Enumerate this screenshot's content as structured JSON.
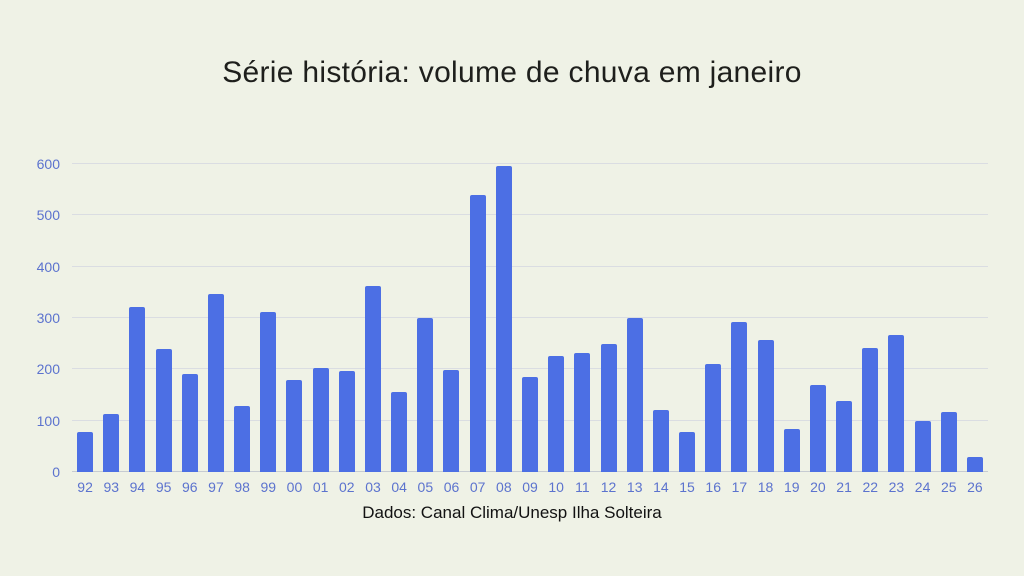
{
  "caption": "Dados: Canal Clima/Unesp Ilha Solteira",
  "colors": {
    "background": "#eff2e6",
    "bar": "#4c6fe4",
    "axis_label": "#5c73ce",
    "gridline": "#dadde2",
    "title_text": "#1e1f1c"
  },
  "chart_data": {
    "type": "bar",
    "title": "Série história: volume de chuva em janeiro",
    "categories": [
      "92",
      "93",
      "94",
      "95",
      "96",
      "97",
      "98",
      "99",
      "00",
      "01",
      "02",
      "03",
      "04",
      "05",
      "06",
      "07",
      "08",
      "09",
      "10",
      "11",
      "12",
      "13",
      "14",
      "15",
      "16",
      "17",
      "18",
      "19",
      "20",
      "21",
      "22",
      "23",
      "24",
      "25",
      "26"
    ],
    "values": [
      78,
      113,
      322,
      240,
      190,
      346,
      128,
      312,
      180,
      202,
      196,
      362,
      156,
      300,
      198,
      540,
      596,
      186,
      226,
      232,
      250,
      300,
      120,
      77,
      210,
      292,
      257,
      83,
      170,
      139,
      241,
      267,
      99,
      117,
      30
    ],
    "xlabel": "",
    "ylabel": "",
    "ylim": [
      0,
      600
    ],
    "yticks": [
      0,
      100,
      200,
      300,
      400,
      500,
      600
    ],
    "grid": true,
    "legend": false
  }
}
